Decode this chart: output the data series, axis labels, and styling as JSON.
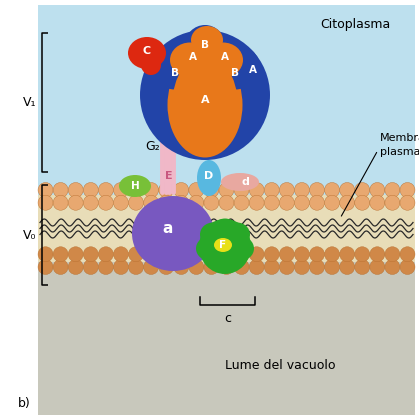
{
  "bg_top": "#bde0ee",
  "bg_bottom": "#c8c8bc",
  "bg_left": "#ffffff",
  "membrane_inner_color": "#e8ddb8",
  "citoplasma_text": "Citoplasma",
  "membrana_text": "Membrana\nplasmatica",
  "lume_text": "Lume del vacuolo",
  "b_label": "b)",
  "v1_label": "V₁",
  "v0_label": "V₀",
  "g2_label": "G₂",
  "colors": {
    "A": "#e8781a",
    "B": "#2244a8",
    "C": "#dd2810",
    "E_stalk": "#f0b8c8",
    "D": "#58b8e0",
    "d": "#e8a8a0",
    "F": "#e8e018",
    "H": "#78c038",
    "a": "#7858c0",
    "c": "#28a828",
    "bead_top": "#e8a870",
    "bead_bot": "#d08848",
    "bead_edge": "#b87030"
  },
  "figsize": [
    4.19,
    4.15
  ],
  "dpi": 100
}
